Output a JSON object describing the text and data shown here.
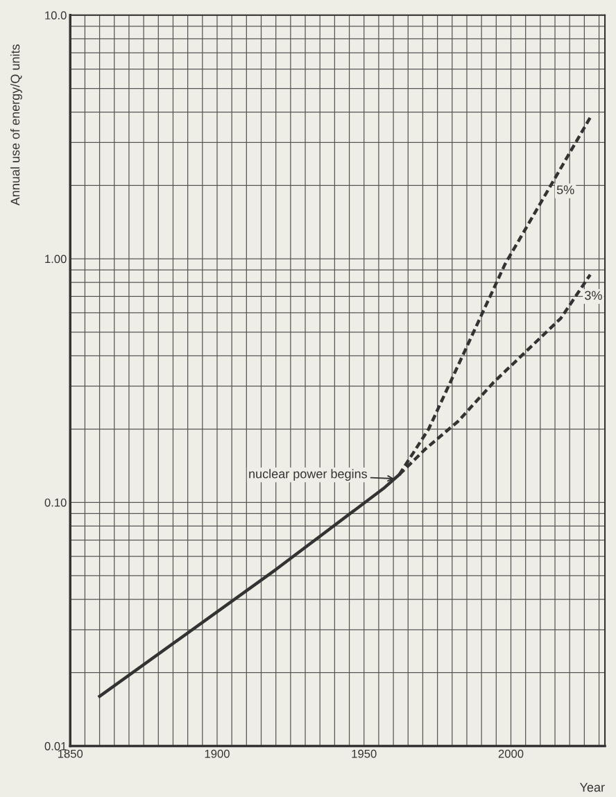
{
  "chart_data": {
    "type": "line",
    "xlabel": "Year",
    "ylabel": "Annual use of energy/Q units",
    "log": "y",
    "grid": true,
    "xlim": [
      1850,
      2032
    ],
    "xticks": [
      1850,
      {
        "value": 1855,
        "label": null
      },
      {
        "value": 1860,
        "label": null
      },
      {
        "value": 1865,
        "label": null
      },
      {
        "value": 1870,
        "label": null
      },
      {
        "value": 1875,
        "label": null
      },
      {
        "value": 1880,
        "label": null
      },
      {
        "value": 1885,
        "label": null
      },
      {
        "value": 1890,
        "label": null
      },
      {
        "value": 1895,
        "label": null
      },
      1900,
      {
        "value": 1905,
        "label": null
      },
      {
        "value": 1910,
        "label": null
      },
      {
        "value": 1915,
        "label": null
      },
      {
        "value": 1920,
        "label": null
      },
      {
        "value": 1925,
        "label": null
      },
      {
        "value": 1930,
        "label": null
      },
      {
        "value": 1935,
        "label": null
      },
      {
        "value": 1940,
        "label": null
      },
      {
        "value": 1945,
        "label": null
      },
      1950,
      {
        "value": 1955,
        "label": null
      },
      {
        "value": 1960,
        "label": null
      },
      {
        "value": 1965,
        "label": null
      },
      {
        "value": 1970,
        "label": null
      },
      {
        "value": 1975,
        "label": null
      },
      {
        "value": 1980,
        "label": null
      },
      {
        "value": 1985,
        "label": null
      },
      {
        "value": 1990,
        "label": null
      },
      {
        "value": 1995,
        "label": null
      },
      2000,
      {
        "value": 2005,
        "label": null
      },
      {
        "value": 2010,
        "label": null
      },
      {
        "value": 2015,
        "label": null
      },
      {
        "value": 2020,
        "label": null
      },
      {
        "value": 2025,
        "label": null
      },
      {
        "value": 2030,
        "label": null
      }
    ],
    "ylim": [
      0.01,
      10
    ],
    "yticks": [
      {
        "value": 0.01,
        "label": "0.01"
      },
      {
        "value": 0.02,
        "label": null
      },
      {
        "value": 0.03,
        "label": null
      },
      {
        "value": 0.04,
        "label": null
      },
      {
        "value": 0.05,
        "label": null
      },
      {
        "value": 0.06,
        "label": null
      },
      {
        "value": 0.07,
        "label": null
      },
      {
        "value": 0.08,
        "label": null
      },
      {
        "value": 0.09,
        "label": null
      },
      {
        "value": 0.1,
        "label": "0.10"
      },
      {
        "value": 0.2,
        "label": null
      },
      {
        "value": 0.3,
        "label": null
      },
      {
        "value": 0.4,
        "label": null
      },
      {
        "value": 0.5,
        "label": null
      },
      {
        "value": 0.6,
        "label": null
      },
      {
        "value": 0.7,
        "label": null
      },
      {
        "value": 0.8,
        "label": null
      },
      {
        "value": 0.9,
        "label": null
      },
      {
        "value": 1,
        "label": "1.00"
      },
      {
        "value": 2,
        "label": null
      },
      {
        "value": 3,
        "label": null
      },
      {
        "value": 4,
        "label": null
      },
      {
        "value": 5,
        "label": null
      },
      {
        "value": 6,
        "label": null
      },
      {
        "value": 7,
        "label": null
      },
      {
        "value": 8,
        "label": null
      },
      {
        "value": 9,
        "label": null
      },
      {
        "value": 10,
        "label": "10.0"
      }
    ],
    "series": [
      {
        "color": "#333333",
        "line_style": "solid",
        "x": [
          1860,
          1920,
          1957,
          1962
        ],
        "values": [
          0.016,
          0.053,
          0.115,
          0.13
        ]
      },
      {
        "name": "5%",
        "color": "#333333",
        "line_style": "dashed",
        "x": [
          1962,
          1972,
          1998,
          2027
        ],
        "values": [
          0.13,
          0.2,
          0.95,
          3.8
        ]
      },
      {
        "name": "3%",
        "color": "#333333",
        "line_style": "dashed",
        "x": [
          1962,
          1971,
          1982,
          1994,
          2017,
          2027
        ],
        "values": [
          0.13,
          0.166,
          0.215,
          0.31,
          0.57,
          0.86
        ]
      }
    ],
    "annotations": [
      {
        "text": "nuclear power begins",
        "x": 1961,
        "y": 0.125
      }
    ]
  }
}
